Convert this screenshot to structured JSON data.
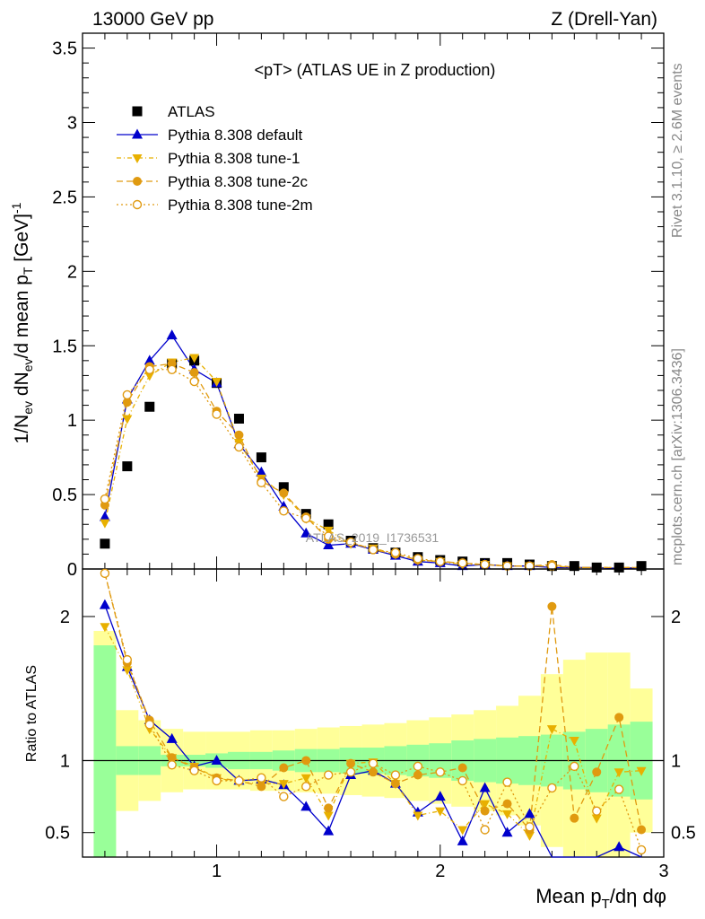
{
  "header": {
    "left_title": "13000 GeV pp",
    "right_title": "Z (Drell-Yan)"
  },
  "plot_title": "<pT> (ATLAS UE in Z production)",
  "watermark": "ATLAS_2019_I1736531",
  "side_labels": {
    "rivet": "Rivet 3.1.10, ≥ 2.6M events",
    "mcplots": "mcplots.cern.ch [arXiv:1306.3436]"
  },
  "axes": {
    "ylabel_main": "1/N_ev dN_ev/d mean p_T [GeV]^-1",
    "ylabel_ratio": "Ratio to ATLAS",
    "xlabel": "Mean p_T/dη dφ"
  },
  "legend": [
    {
      "label": "ATLAS",
      "color": "#000000",
      "marker": "square-filled"
    },
    {
      "label": "Pythia 8.308 default",
      "color": "#0000cc",
      "marker": "triangle-up-filled"
    },
    {
      "label": "Pythia 8.308 tune-1",
      "color": "#e8b000",
      "marker": "triangle-down-filled"
    },
    {
      "label": "Pythia 8.308 tune-2c",
      "color": "#e09a10",
      "marker": "circle-filled"
    },
    {
      "label": "Pythia 8.308 tune-2m",
      "color": "#e09a10",
      "marker": "circle-open"
    }
  ],
  "chart_data": {
    "type": "scatter",
    "x": [
      0.5,
      0.6,
      0.7,
      0.8,
      0.9,
      1.0,
      1.1,
      1.2,
      1.3,
      1.4,
      1.5,
      1.6,
      1.7,
      1.8,
      1.9,
      2.0,
      2.1,
      2.2,
      2.3,
      2.4,
      2.5,
      2.6,
      2.7,
      2.8,
      2.9
    ],
    "xlim": [
      0.4,
      3.0
    ],
    "x_ticks": [
      1,
      2,
      3
    ],
    "main_ylim": [
      0,
      3.6
    ],
    "main_y_ticks": [
      0,
      0.5,
      1,
      1.5,
      2,
      2.5,
      3,
      3.5
    ],
    "main_y_tick_labels": [
      "0",
      "0.5",
      "1",
      "1.5",
      "2",
      "2.5",
      "3",
      "3.5"
    ],
    "ratio_ylim": [
      0.33,
      2.33
    ],
    "ratio_y_ticks": [
      0.5,
      1,
      2
    ],
    "ratio_y_tick_labels": [
      "0.5",
      "1",
      "2"
    ],
    "series": [
      {
        "name": "ATLAS",
        "values": [
          0.17,
          0.69,
          1.09,
          1.38,
          1.4,
          1.25,
          1.01,
          0.75,
          0.55,
          0.37,
          0.3,
          0.19,
          0.14,
          0.11,
          0.08,
          0.06,
          0.05,
          0.04,
          0.04,
          0.03,
          0.02,
          0.02,
          0.01,
          0.01,
          0.02
        ]
      },
      {
        "name": "Pythia 8.308 default",
        "values": [
          0.35,
          1.14,
          1.4,
          1.57,
          1.34,
          1.25,
          0.84,
          0.65,
          0.42,
          0.24,
          0.16,
          0.17,
          0.13,
          0.09,
          0.05,
          0.04,
          0.02,
          0.03,
          0.02,
          0.02,
          0.01,
          0.01,
          0.01,
          0.004,
          0.01
        ],
        "ratio": [
          2.08,
          1.65,
          1.28,
          1.15,
          0.96,
          1.0,
          0.86,
          0.87,
          0.83,
          0.68,
          0.51,
          0.9,
          0.93,
          0.84,
          0.64,
          0.75,
          0.44,
          0.81,
          0.5,
          0.63,
          0.3,
          0.3,
          0.3,
          0.4,
          0.3
        ]
      },
      {
        "name": "Pythia 8.308 tune-1",
        "values": [
          0.31,
          1.01,
          1.3,
          1.39,
          1.42,
          1.26,
          0.85,
          0.61,
          0.5,
          0.34,
          0.26,
          0.17,
          0.14,
          0.1,
          0.06,
          0.05,
          0.03,
          0.03,
          0.02,
          0.02,
          0.02,
          0.01,
          0.01,
          0.01,
          0.01
        ],
        "ratio": [
          1.93,
          1.63,
          1.22,
          1.02,
          0.96,
          0.88,
          0.85,
          0.84,
          0.84,
          0.88,
          0.62,
          0.98,
          0.99,
          0.84,
          0.62,
          0.65,
          0.52,
          0.7,
          0.63,
          0.48,
          1.22,
          1.14,
          0.6,
          0.92,
          0.93
        ]
      },
      {
        "name": "Pythia 8.308 tune-2c",
        "values": [
          0.43,
          1.12,
          1.36,
          1.38,
          1.32,
          1.06,
          0.9,
          0.59,
          0.51,
          0.35,
          0.2,
          0.18,
          0.13,
          0.1,
          0.06,
          0.05,
          0.04,
          0.03,
          0.02,
          0.02,
          0.03,
          0.01,
          0.01,
          0.01,
          0.01
        ],
        "ratio": [
          2.3,
          1.68,
          1.28,
          1.02,
          0.95,
          0.88,
          0.86,
          0.82,
          0.95,
          1.0,
          0.67,
          0.98,
          0.92,
          0.84,
          0.9,
          0.92,
          0.95,
          0.65,
          0.7,
          0.52,
          2.07,
          0.6,
          0.92,
          1.3,
          0.52
        ]
      },
      {
        "name": "Pythia 8.308 tune-2m",
        "values": [
          0.47,
          1.17,
          1.34,
          1.34,
          1.26,
          1.04,
          0.82,
          0.58,
          0.39,
          0.34,
          0.22,
          0.18,
          0.13,
          0.11,
          0.07,
          0.05,
          0.04,
          0.03,
          0.02,
          0.02,
          0.02,
          0.01,
          0.01,
          0.01,
          0.01
        ],
        "ratio": [
          2.3,
          1.7,
          1.25,
          0.97,
          0.93,
          0.86,
          0.86,
          0.88,
          0.75,
          0.82,
          0.9,
          0.92,
          0.98,
          0.9,
          0.96,
          0.92,
          0.86,
          0.52,
          0.85,
          0.54,
          0.81,
          0.96,
          0.65,
          0.8,
          0.38
        ]
      }
    ],
    "ratio_bands": {
      "stat_half_width": [
        0.8,
        0.1,
        0.1,
        0.04,
        0.04,
        0.05,
        0.06,
        0.06,
        0.07,
        0.08,
        0.08,
        0.09,
        0.09,
        0.1,
        0.11,
        0.12,
        0.14,
        0.15,
        0.16,
        0.17,
        0.18,
        0.2,
        0.22,
        0.25,
        0.27
      ],
      "total_half_width": [
        0.9,
        0.35,
        0.28,
        0.22,
        0.2,
        0.2,
        0.2,
        0.21,
        0.21,
        0.22,
        0.23,
        0.24,
        0.25,
        0.26,
        0.28,
        0.3,
        0.32,
        0.35,
        0.38,
        0.45,
        0.6,
        0.7,
        0.75,
        0.75,
        0.5
      ]
    }
  }
}
